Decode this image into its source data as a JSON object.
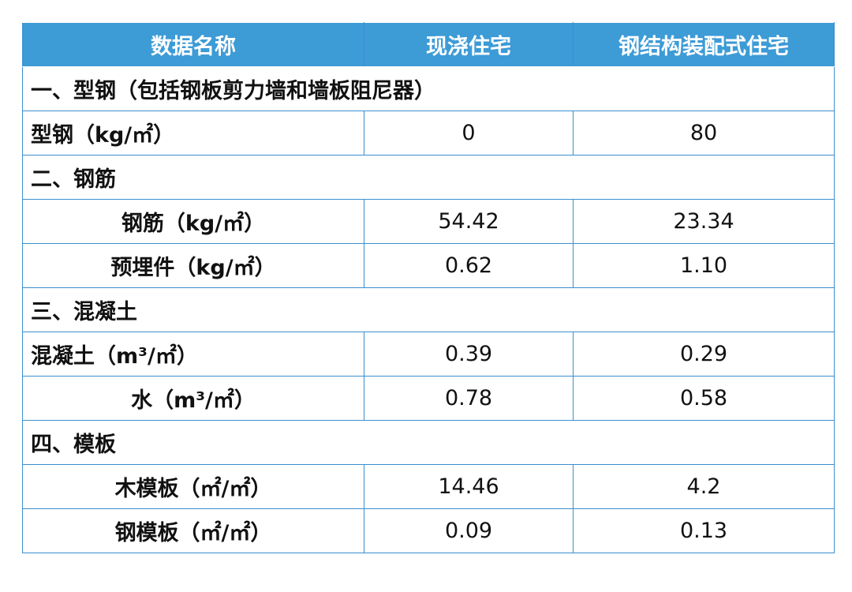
{
  "table": {
    "header": [
      "数据名称",
      "现浇住宅",
      "钢结构装配式住宅"
    ],
    "rows": [
      [
        "一、型钢（包括钢板剪力墙和墙板阻尼器）"
      ],
      [
        "型钢（kg/㎡）",
        "0",
        "80"
      ],
      [
        "二、钢筋"
      ],
      [
        "钢筋（kg/㎡）",
        "54.42",
        "23.34"
      ],
      [
        "预埋件（kg/㎡）",
        "0.62",
        "1.10"
      ],
      [
        "三、混凝土"
      ],
      [
        "混凝土（m³/㎡）",
        "0.39",
        "0.29"
      ],
      [
        "水（m³/㎡）",
        "0.78",
        "0.58"
      ],
      [
        "四、模板"
      ],
      [
        "木模板（㎡/㎡）",
        "14.46",
        "4.2"
      ],
      [
        "钢模板（㎡/㎡）",
        "0.09",
        "0.13"
      ]
    ]
  }
}
